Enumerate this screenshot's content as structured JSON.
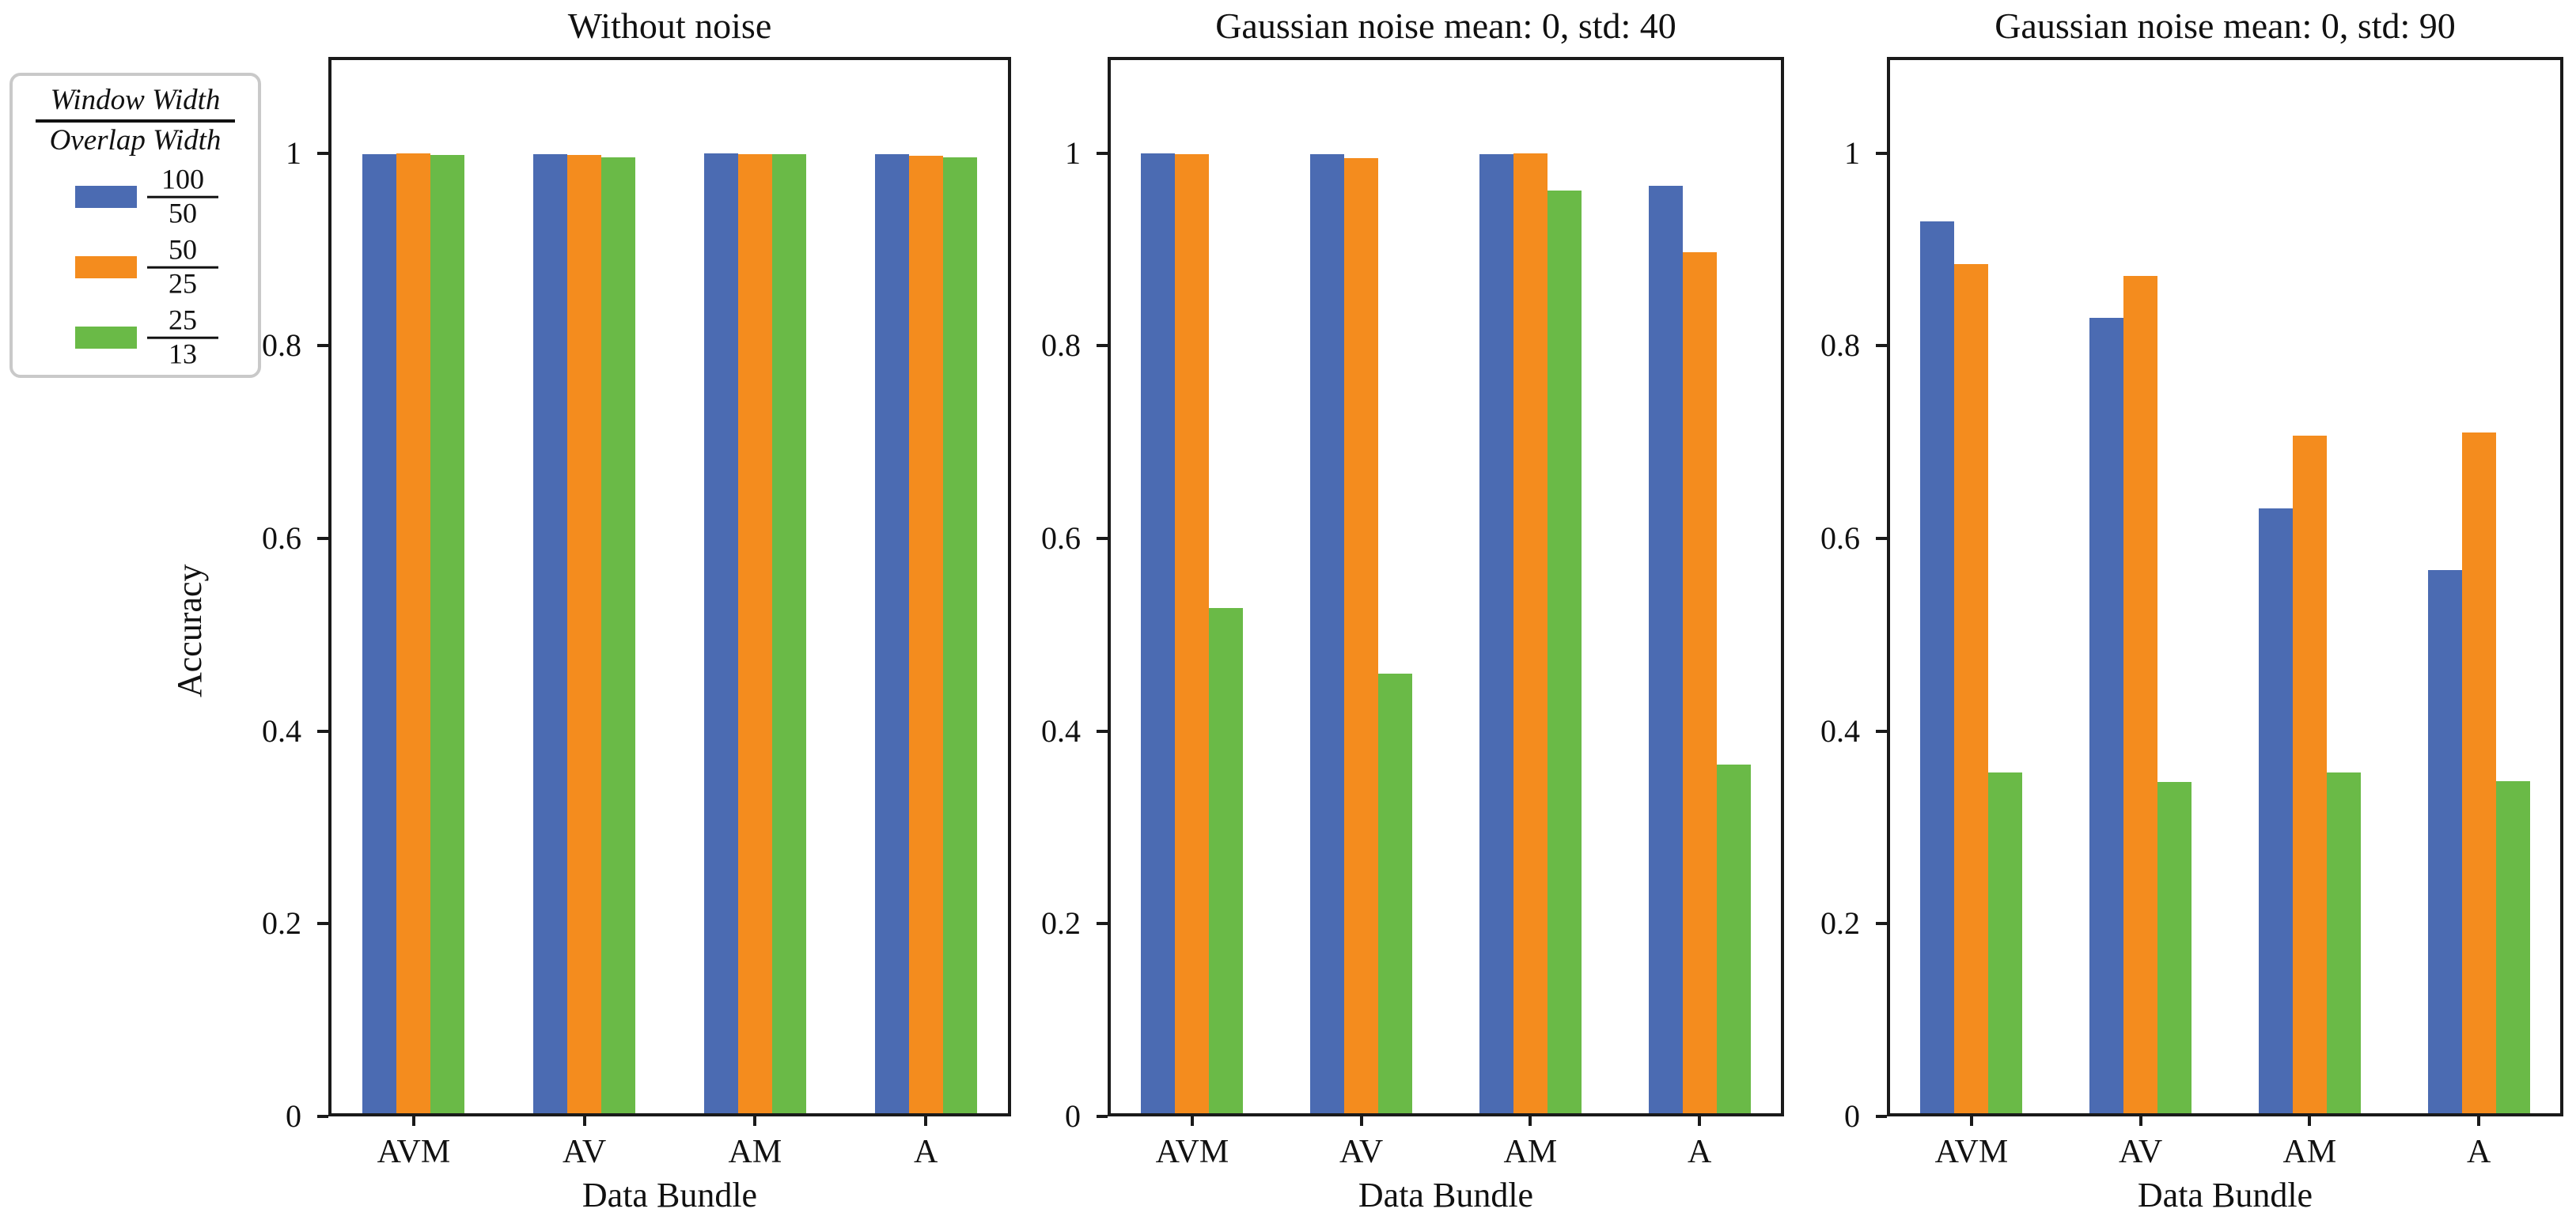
{
  "figure": {
    "background": "#ffffff"
  },
  "axes": {
    "ylabel": "Accuracy",
    "xlabel": "Data Bundle",
    "categories": [
      "AVM",
      "AV",
      "AM",
      "A"
    ],
    "yticks": {
      "values": [
        0,
        0.2,
        0.4,
        0.6,
        0.8,
        1
      ],
      "labels": [
        "0",
        "0.2",
        "0.4",
        "0.6",
        "0.8",
        "1"
      ]
    },
    "ylim": [
      0,
      1.1
    ],
    "grid": "off"
  },
  "colors": {
    "blue": "#4b6bb2",
    "orange": "#f48c1e",
    "green": "#6aba47",
    "spine": "#1a1a1a",
    "legend_border": "#c9c9c9"
  },
  "legend": {
    "position": "upper-left-outside",
    "title_numerator": "Window Width",
    "title_denominator": "Overlap Width",
    "entries": [
      {
        "series": "100/50",
        "numerator": "100",
        "denominator": "50",
        "color": "#4b6bb2"
      },
      {
        "series": "50/25",
        "numerator": "50",
        "denominator": "25",
        "color": "#f48c1e"
      },
      {
        "series": "25/13",
        "numerator": "25",
        "denominator": "13",
        "color": "#6aba47"
      }
    ]
  },
  "chart_data": [
    {
      "type": "bar",
      "title": "Without noise",
      "xlabel": "Data Bundle",
      "ylabel": "Accuracy",
      "ylim": [
        0,
        1.1
      ],
      "categories": [
        "AVM",
        "AV",
        "AM",
        "A"
      ],
      "series": [
        {
          "name": "100/50",
          "color": "#4b6bb2",
          "values": [
            0.999,
            0.999,
            1.0,
            0.999
          ]
        },
        {
          "name": "50/25",
          "color": "#f48c1e",
          "values": [
            1.0,
            0.998,
            0.999,
            0.997
          ]
        },
        {
          "name": "25/13",
          "color": "#6aba47",
          "values": [
            0.998,
            0.996,
            0.999,
            0.996
          ]
        }
      ]
    },
    {
      "type": "bar",
      "title": "Gaussian noise mean: 0, std: 40",
      "xlabel": "Data Bundle",
      "ylabel": "Accuracy",
      "ylim": [
        0,
        1.1
      ],
      "categories": [
        "AVM",
        "AV",
        "AM",
        "A"
      ],
      "series": [
        {
          "name": "100/50",
          "color": "#4b6bb2",
          "values": [
            1.0,
            0.999,
            0.999,
            0.966
          ]
        },
        {
          "name": "50/25",
          "color": "#f48c1e",
          "values": [
            0.999,
            0.995,
            1.0,
            0.897
          ]
        },
        {
          "name": "25/13",
          "color": "#6aba47",
          "values": [
            0.528,
            0.46,
            0.961,
            0.365
          ]
        }
      ]
    },
    {
      "type": "bar",
      "title": "Gaussian noise mean: 0, std: 90",
      "xlabel": "Data Bundle",
      "ylabel": "Accuracy",
      "ylim": [
        0,
        1.1
      ],
      "categories": [
        "AVM",
        "AV",
        "AM",
        "A"
      ],
      "series": [
        {
          "name": "100/50",
          "color": "#4b6bb2",
          "values": [
            0.929,
            0.829,
            0.631,
            0.567
          ]
        },
        {
          "name": "50/25",
          "color": "#f48c1e",
          "values": [
            0.885,
            0.873,
            0.707,
            0.71
          ]
        },
        {
          "name": "25/13",
          "color": "#6aba47",
          "values": [
            0.357,
            0.347,
            0.357,
            0.348
          ]
        }
      ]
    }
  ]
}
